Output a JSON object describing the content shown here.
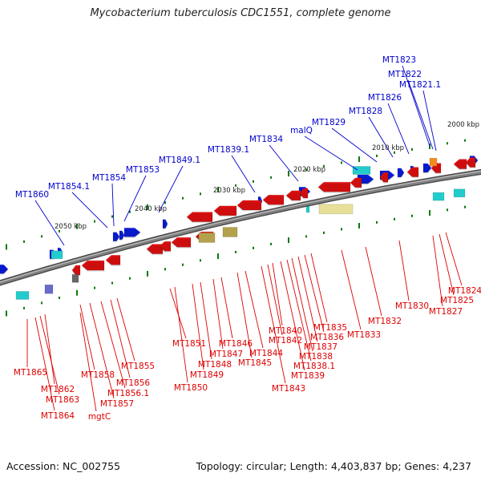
{
  "title": "Mycobacterium tuberculosis CDC1551, complete genome",
  "footer": {
    "accession": "Accession: NC_002755",
    "stats": "Topology: circular; Length: 4,403,837 bp; Genes: 4,237"
  },
  "colors": {
    "backbone": "#808080",
    "forward_label": "#0000cc",
    "reverse_label": "#dd0000",
    "forward_gene": "#0a1ee8",
    "reverse_gene": "#ee1111",
    "trna": "#22cccc",
    "rrna": "#e8df9a",
    "misc": "#b3a14c",
    "tick": "#0a7a0a"
  },
  "scale_labels": [
    "2000 kbp",
    "2010 kbp",
    "2020 kbp",
    "2030 kbp",
    "2040 kbp",
    "2050 kbp"
  ],
  "forward_labels": [
    "MT1823",
    "MT1822",
    "MT1821.1",
    "MT1826",
    "MT1828",
    "MT1829",
    "malQ",
    "MT1834",
    "MT1839.1",
    "MT1849.1",
    "MT1853",
    "MT1854",
    "MT1854.1",
    "MT1860"
  ],
  "reverse_labels": [
    "MT1824",
    "MT1825",
    "MT1827",
    "MT1830",
    "MT1832",
    "MT1833",
    "MT1835",
    "MT1836",
    "MT1837",
    "MT1838",
    "MT1838.1",
    "MT1839",
    "MT1840",
    "MT1842",
    "MT1843",
    "MT1844",
    "MT1845",
    "MT1846",
    "MT1847",
    "MT1848",
    "MT1849",
    "MT1850",
    "MT1851",
    "MT1855",
    "MT1856",
    "MT1856.1",
    "MT1857",
    "MT1858",
    "mgtC",
    "MT1862",
    "MT1863",
    "MT1864",
    "MT1865"
  ]
}
